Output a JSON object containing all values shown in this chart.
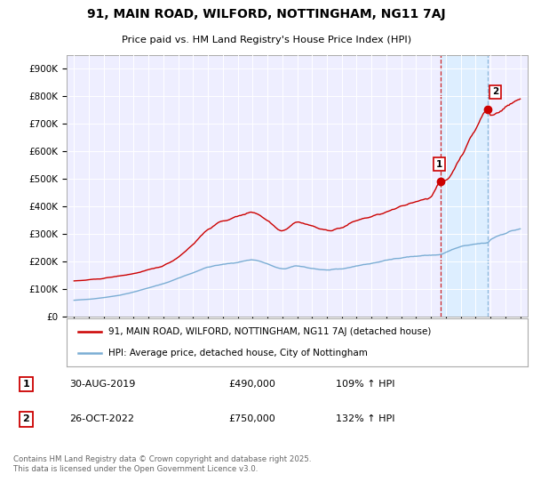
{
  "title": "91, MAIN ROAD, WILFORD, NOTTINGHAM, NG11 7AJ",
  "subtitle": "Price paid vs. HM Land Registry's House Price Index (HPI)",
  "legend_line1": "91, MAIN ROAD, WILFORD, NOTTINGHAM, NG11 7AJ (detached house)",
  "legend_line2": "HPI: Average price, detached house, City of Nottingham",
  "footnote": "Contains HM Land Registry data © Crown copyright and database right 2025.\nThis data is licensed under the Open Government Licence v3.0.",
  "annotation1_date": "30-AUG-2019",
  "annotation1_price": "£490,000",
  "annotation1_hpi": "109% ↑ HPI",
  "annotation2_date": "26-OCT-2022",
  "annotation2_price": "£750,000",
  "annotation2_hpi": "132% ↑ HPI",
  "line_color_red": "#cc0000",
  "line_color_blue": "#7aadd4",
  "background_color": "#ffffff",
  "plot_bg_color": "#eeeeff",
  "shade_color": "#ddeeff",
  "vline_color": "#cc0000",
  "vline_color2": "#7aadd4",
  "ylim": [
    0,
    950000
  ],
  "yticks": [
    0,
    100000,
    200000,
    300000,
    400000,
    500000,
    600000,
    700000,
    800000,
    900000
  ],
  "ytick_labels": [
    "£0",
    "£100K",
    "£200K",
    "£300K",
    "£400K",
    "£500K",
    "£600K",
    "£700K",
    "£800K",
    "£900K"
  ],
  "sale1_x": 2019.67,
  "sale1_y": 490000,
  "sale2_x": 2022.83,
  "sale2_y": 750000,
  "xmin": 1994.5,
  "xmax": 2025.5
}
